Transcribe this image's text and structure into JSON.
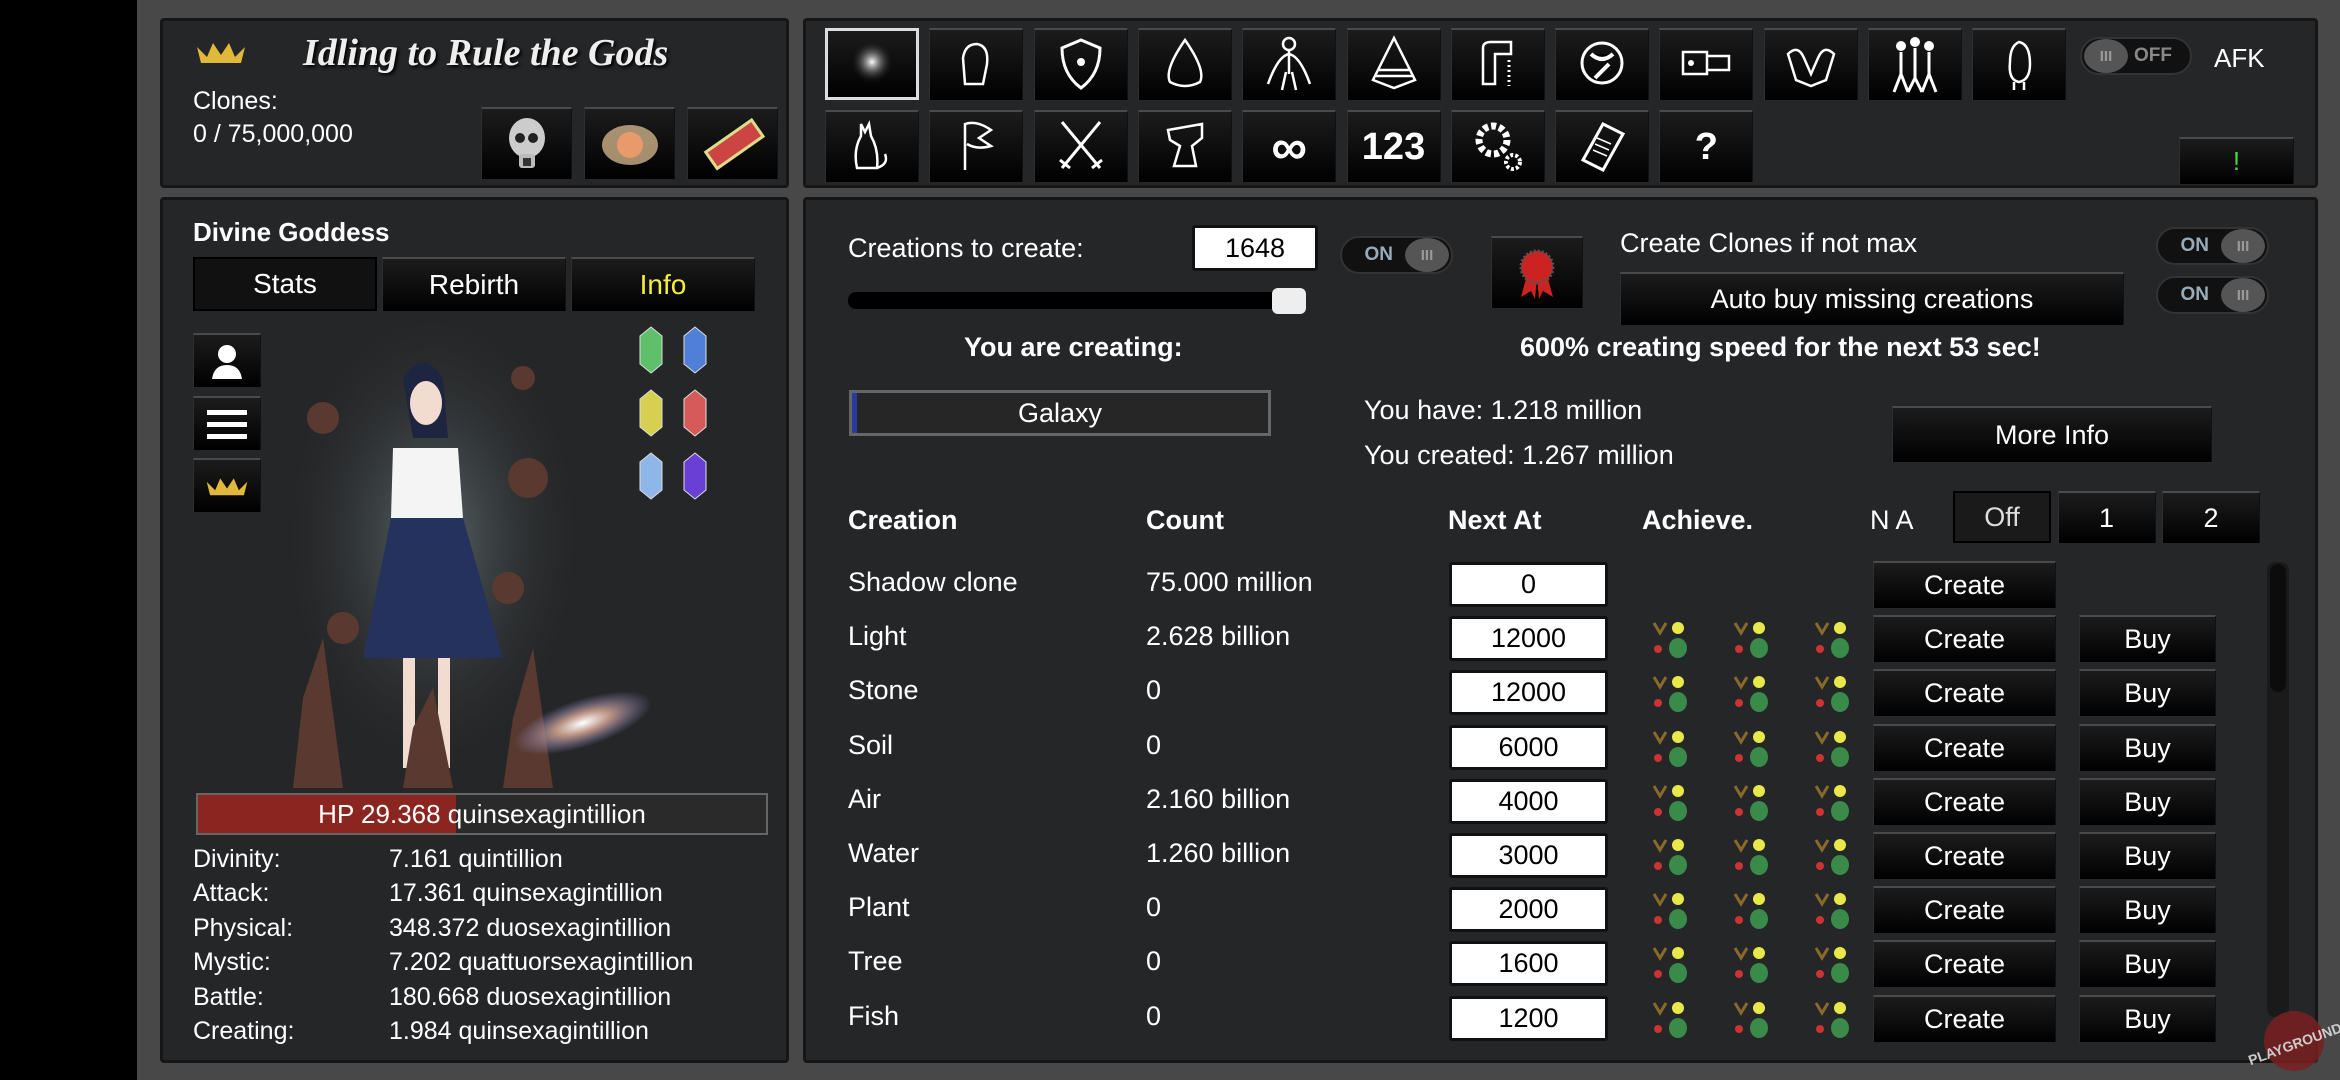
{
  "header": {
    "title": "Idling to Rule the Gods",
    "clones_label": "Clones:",
    "clones_value": "0 / 75,000,000",
    "icons": [
      "skull-icon",
      "flame-heart-icon",
      "lucky-ticket-icon"
    ]
  },
  "toolbar": {
    "row1": [
      "light-orb-icon",
      "fist-icon",
      "shield-icon",
      "slime-icon",
      "body-icon",
      "pyramid-icon",
      "tap-icon",
      "planet-icon",
      "rocket-icon",
      "demon-icon",
      "people-icon",
      "bird-icon"
    ],
    "row2": [
      "cat-icon",
      "flag-icon",
      "crossed-swords-icon",
      "anvil-icon",
      "infinity-icon",
      "numbers-icon",
      "gears-icon",
      "book-icon",
      "help-icon"
    ],
    "row2_glyphs": {
      "infinity": "∞",
      "numbers": "123",
      "help": "?"
    },
    "afk_toggle": "OFF",
    "afk_label": "AFK",
    "alert_label": "!"
  },
  "character": {
    "name": "Divine Goddess",
    "tabs": [
      "Stats",
      "Rebirth",
      "Info"
    ],
    "active_tab": "Info",
    "hp_text": "HP 29.368 quinsexagintillion",
    "hp_fraction": 0.455,
    "gems": [
      "#5fbf6a",
      "#4f7fd6",
      "#d6cf4f",
      "#d65a5a",
      "#8fb6e8",
      "#6a3fd6"
    ],
    "stats": [
      {
        "label": "Divinity:",
        "value": "7.161 quintillion"
      },
      {
        "label": "Attack:",
        "value": "17.361 quinsexagintillion"
      },
      {
        "label": "Physical:",
        "value": "348.372 duosexagintillion"
      },
      {
        "label": "Mystic:",
        "value": "7.202 quattuorsexagintillion"
      },
      {
        "label": "Battle:",
        "value": "180.668 duosexagintillion"
      },
      {
        "label": "Creating:",
        "value": "1.984 quinsexagintillion"
      }
    ]
  },
  "creation": {
    "to_create_label": "Creations to create:",
    "to_create_value": "1648",
    "toggle1": "ON",
    "slider_fraction": 1.0,
    "clones_label": "Create Clones if not max",
    "toggle2": "ON",
    "auto_buy_label": "Auto buy missing creations",
    "toggle3": "ON",
    "creating_label": "You are creating:",
    "speed_text": "600% creating speed for the next 53 sec!",
    "current": "Galaxy",
    "current_progress": 0.01,
    "you_have": "You have: 1.218 million",
    "you_created": "You created: 1.267 million",
    "more_info": "More Info",
    "headers": {
      "creation": "Creation",
      "count": "Count",
      "next_at": "Next At",
      "achieve": "Achieve.",
      "na": "N A"
    },
    "na_options": [
      "Off",
      "1",
      "2"
    ],
    "create_label": "Create",
    "buy_label": "Buy",
    "rows": [
      {
        "name": "Shadow clone",
        "count": "75.000 million",
        "next_at": "0",
        "ach": false,
        "buy": false
      },
      {
        "name": "Light",
        "count": "2.628 billion",
        "next_at": "12000",
        "ach": true,
        "buy": true
      },
      {
        "name": "Stone",
        "count": "0",
        "next_at": "12000",
        "ach": true,
        "buy": true
      },
      {
        "name": "Soil",
        "count": "0",
        "next_at": "6000",
        "ach": true,
        "buy": true
      },
      {
        "name": "Air",
        "count": "2.160 billion",
        "next_at": "4000",
        "ach": true,
        "buy": true
      },
      {
        "name": "Water",
        "count": "1.260 billion",
        "next_at": "3000",
        "ach": true,
        "buy": true
      },
      {
        "name": "Plant",
        "count": "0",
        "next_at": "2000",
        "ach": true,
        "buy": true
      },
      {
        "name": "Tree",
        "count": "0",
        "next_at": "1600",
        "ach": true,
        "buy": true
      },
      {
        "name": "Fish",
        "count": "0",
        "next_at": "1200",
        "ach": true,
        "buy": true
      }
    ]
  },
  "colors": {
    "accent_yellow": "#f2ee3a",
    "hp_red": "#8b2520",
    "alert_green": "#4cd24c"
  }
}
